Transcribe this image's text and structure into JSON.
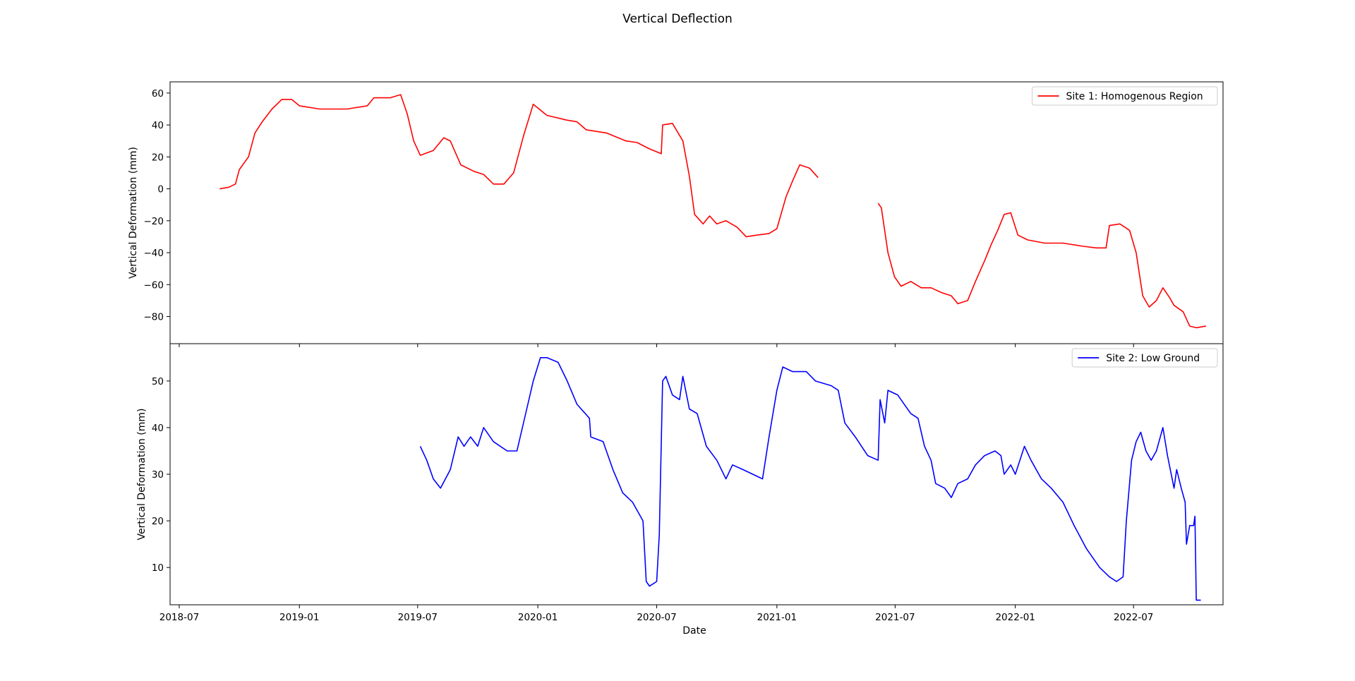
{
  "chart_data": {
    "type": "line",
    "title": "Vertical Deflection",
    "xlabel": "Date",
    "x_ticks": [
      "2018-07",
      "2019-01",
      "2019-07",
      "2020-01",
      "2020-07",
      "2021-01",
      "2021-07",
      "2022-01",
      "2022-07"
    ],
    "xlim": [
      "2018-06-17",
      "2022-11-15"
    ],
    "panels": [
      {
        "ylabel": "Vertical Deformation (mm)",
        "ylim": [
          -97,
          67
        ],
        "y_ticks": [
          60,
          40,
          20,
          0,
          -20,
          -40,
          -60,
          -80
        ],
        "legend_position": "top-right",
        "series": [
          {
            "name": "Site 1: Homogenous Region",
            "color": "#ff0000",
            "points": [
              [
                "2018-09-01",
                0
              ],
              [
                "2018-09-15",
                1
              ],
              [
                "2018-09-25",
                3
              ],
              [
                "2018-10-01",
                12
              ],
              [
                "2018-10-15",
                20
              ],
              [
                "2018-10-25",
                35
              ],
              [
                "2018-11-05",
                42
              ],
              [
                "2018-11-20",
                50
              ],
              [
                "2018-12-05",
                56
              ],
              [
                "2018-12-20",
                56
              ],
              [
                "2019-01-01",
                52
              ],
              [
                "2019-02-01",
                50
              ],
              [
                "2019-03-15",
                50
              ],
              [
                "2019-04-15",
                52
              ],
              [
                "2019-04-25",
                57
              ],
              [
                "2019-05-20",
                57
              ],
              [
                "2019-06-05",
                59
              ],
              [
                "2019-06-15",
                47
              ],
              [
                "2019-06-25",
                30
              ],
              [
                "2019-07-05",
                21
              ],
              [
                "2019-07-25",
                24
              ],
              [
                "2019-08-10",
                32
              ],
              [
                "2019-08-20",
                30
              ],
              [
                "2019-09-05",
                15
              ],
              [
                "2019-09-25",
                11
              ],
              [
                "2019-10-10",
                9
              ],
              [
                "2019-10-25",
                3
              ],
              [
                "2019-11-10",
                3
              ],
              [
                "2019-11-25",
                10
              ],
              [
                "2019-12-10",
                33
              ],
              [
                "2019-12-25",
                53
              ],
              [
                "2020-01-15",
                46
              ],
              [
                "2020-02-15",
                43
              ],
              [
                "2020-03-01",
                42
              ],
              [
                "2020-03-15",
                37
              ],
              [
                "2020-04-15",
                35
              ],
              [
                "2020-05-15",
                30
              ],
              [
                "2020-06-01",
                29
              ],
              [
                "2020-06-20",
                25
              ],
              [
                "2020-07-08",
                22
              ],
              [
                "2020-07-10",
                40
              ],
              [
                "2020-07-25",
                41
              ],
              [
                "2020-08-10",
                30
              ],
              [
                "2020-08-20",
                8
              ],
              [
                "2020-08-28",
                -16
              ],
              [
                "2020-09-10",
                -22
              ],
              [
                "2020-09-20",
                -17
              ],
              [
                "2020-10-01",
                -22
              ],
              [
                "2020-10-15",
                -20
              ],
              [
                "2020-11-01",
                -24
              ],
              [
                "2020-11-15",
                -30
              ],
              [
                "2020-12-01",
                -29
              ],
              [
                "2020-12-20",
                -28
              ],
              [
                "2021-01-01",
                -25
              ],
              [
                "2021-01-15",
                -5
              ],
              [
                "2021-01-25",
                5
              ],
              [
                "2021-02-05",
                15
              ],
              [
                "2021-02-20",
                13
              ],
              [
                "2021-03-05",
                7
              ]
            ]
          },
          {
            "name": "",
            "color": "#ff0000",
            "points": [
              [
                "2021-06-05",
                -9
              ],
              [
                "2021-06-10",
                -12
              ],
              [
                "2021-06-20",
                -40
              ],
              [
                "2021-06-30",
                -55
              ],
              [
                "2021-07-10",
                -61
              ],
              [
                "2021-07-25",
                -58
              ],
              [
                "2021-08-10",
                -62
              ],
              [
                "2021-08-25",
                -62
              ],
              [
                "2021-09-10",
                -65
              ],
              [
                "2021-09-25",
                -67
              ],
              [
                "2021-10-05",
                -72
              ],
              [
                "2021-10-20",
                -70
              ],
              [
                "2021-11-01",
                -58
              ],
              [
                "2021-11-15",
                -45
              ],
              [
                "2021-11-25",
                -35
              ],
              [
                "2021-12-05",
                -26
              ],
              [
                "2021-12-15",
                -16
              ],
              [
                "2021-12-25",
                -15
              ],
              [
                "2022-01-05",
                -29
              ],
              [
                "2022-01-20",
                -32
              ],
              [
                "2022-02-15",
                -34
              ],
              [
                "2022-03-15",
                -34
              ],
              [
                "2022-04-15",
                -36
              ],
              [
                "2022-05-05",
                -37
              ],
              [
                "2022-05-20",
                -37
              ],
              [
                "2022-05-25",
                -23
              ],
              [
                "2022-06-10",
                -22
              ],
              [
                "2022-06-25",
                -26
              ],
              [
                "2022-07-05",
                -40
              ],
              [
                "2022-07-15",
                -67
              ],
              [
                "2022-07-25",
                -74
              ],
              [
                "2022-08-05",
                -70
              ],
              [
                "2022-08-15",
                -62
              ],
              [
                "2022-08-25",
                -68
              ],
              [
                "2022-09-01",
                -73
              ],
              [
                "2022-09-15",
                -77
              ],
              [
                "2022-09-25",
                -86
              ],
              [
                "2022-10-05",
                -87
              ],
              [
                "2022-10-20",
                -86
              ]
            ]
          }
        ]
      },
      {
        "ylabel": "Vertical Deformation (mm)",
        "ylim": [
          2,
          58
        ],
        "y_ticks": [
          50,
          40,
          30,
          20,
          10
        ],
        "legend_position": "top-right",
        "series": [
          {
            "name": "Site 2: Low Ground",
            "color": "#0000ff",
            "points": [
              [
                "2019-07-05",
                36
              ],
              [
                "2019-07-15",
                33
              ],
              [
                "2019-07-25",
                29
              ],
              [
                "2019-08-05",
                27
              ],
              [
                "2019-08-20",
                31
              ],
              [
                "2019-09-01",
                38
              ],
              [
                "2019-09-10",
                36
              ],
              [
                "2019-09-20",
                38
              ],
              [
                "2019-10-01",
                36
              ],
              [
                "2019-10-10",
                40
              ],
              [
                "2019-10-25",
                37
              ],
              [
                "2019-11-15",
                35
              ],
              [
                "2019-11-30",
                35
              ],
              [
                "2019-12-15",
                44
              ],
              [
                "2019-12-25",
                50
              ],
              [
                "2020-01-05",
                55
              ],
              [
                "2020-01-15",
                55
              ],
              [
                "2020-02-01",
                54
              ],
              [
                "2020-02-15",
                50
              ],
              [
                "2020-03-01",
                45
              ],
              [
                "2020-03-20",
                42
              ],
              [
                "2020-03-22",
                38
              ],
              [
                "2020-04-10",
                37
              ],
              [
                "2020-04-25",
                31
              ],
              [
                "2020-05-10",
                26
              ],
              [
                "2020-05-25",
                24
              ],
              [
                "2020-06-10",
                20
              ],
              [
                "2020-06-15",
                7
              ],
              [
                "2020-06-20",
                6
              ],
              [
                "2020-07-01",
                7
              ],
              [
                "2020-07-05",
                17
              ],
              [
                "2020-07-10",
                50
              ],
              [
                "2020-07-15",
                51
              ],
              [
                "2020-07-25",
                47
              ],
              [
                "2020-08-05",
                46
              ],
              [
                "2020-08-10",
                51
              ],
              [
                "2020-08-20",
                44
              ],
              [
                "2020-09-01",
                43
              ],
              [
                "2020-09-15",
                36
              ],
              [
                "2020-10-01",
                33
              ],
              [
                "2020-10-15",
                29
              ],
              [
                "2020-10-25",
                32
              ],
              [
                "2020-11-10",
                31
              ],
              [
                "2020-11-25",
                30
              ],
              [
                "2020-12-10",
                29
              ],
              [
                "2020-12-20",
                38
              ],
              [
                "2021-01-01",
                48
              ],
              [
                "2021-01-10",
                53
              ],
              [
                "2021-01-25",
                52
              ],
              [
                "2021-02-15",
                52
              ],
              [
                "2021-03-01",
                50
              ],
              [
                "2021-03-25",
                49
              ],
              [
                "2021-04-05",
                48
              ],
              [
                "2021-04-15",
                41
              ],
              [
                "2021-05-01",
                38
              ],
              [
                "2021-05-20",
                34
              ],
              [
                "2021-06-05",
                33
              ],
              [
                "2021-06-08",
                46
              ],
              [
                "2021-06-15",
                41
              ],
              [
                "2021-06-20",
                48
              ],
              [
                "2021-07-05",
                47
              ],
              [
                "2021-07-15",
                45
              ],
              [
                "2021-07-25",
                43
              ],
              [
                "2021-08-05",
                42
              ],
              [
                "2021-08-15",
                36
              ],
              [
                "2021-08-25",
                33
              ],
              [
                "2021-09-01",
                28
              ],
              [
                "2021-09-15",
                27
              ],
              [
                "2021-09-25",
                25
              ],
              [
                "2021-10-05",
                28
              ],
              [
                "2021-10-20",
                29
              ],
              [
                "2021-11-01",
                32
              ],
              [
                "2021-11-15",
                34
              ],
              [
                "2021-12-01",
                35
              ],
              [
                "2021-12-10",
                34
              ],
              [
                "2021-12-15",
                30
              ],
              [
                "2021-12-25",
                32
              ],
              [
                "2022-01-01",
                30
              ],
              [
                "2022-01-15",
                36
              ],
              [
                "2022-01-25",
                33
              ],
              [
                "2022-02-10",
                29
              ],
              [
                "2022-02-25",
                27
              ],
              [
                "2022-03-15",
                24
              ],
              [
                "2022-04-01",
                19
              ],
              [
                "2022-04-20",
                14
              ],
              [
                "2022-05-10",
                10
              ],
              [
                "2022-05-25",
                8
              ],
              [
                "2022-06-05",
                7
              ],
              [
                "2022-06-15",
                8
              ],
              [
                "2022-06-20",
                20
              ],
              [
                "2022-06-28",
                33
              ],
              [
                "2022-07-05",
                37
              ],
              [
                "2022-07-12",
                39
              ],
              [
                "2022-07-20",
                35
              ],
              [
                "2022-07-28",
                33
              ],
              [
                "2022-08-05",
                35
              ],
              [
                "2022-08-15",
                40
              ],
              [
                "2022-08-22",
                34
              ],
              [
                "2022-09-01",
                27
              ],
              [
                "2022-09-05",
                31
              ],
              [
                "2022-09-12",
                27
              ],
              [
                "2022-09-18",
                24
              ],
              [
                "2022-09-20",
                15
              ],
              [
                "2022-09-25",
                19
              ],
              [
                "2022-10-01",
                19
              ],
              [
                "2022-10-03",
                21
              ],
              [
                "2022-10-05",
                3
              ],
              [
                "2022-10-12",
                3
              ]
            ]
          }
        ]
      }
    ]
  }
}
